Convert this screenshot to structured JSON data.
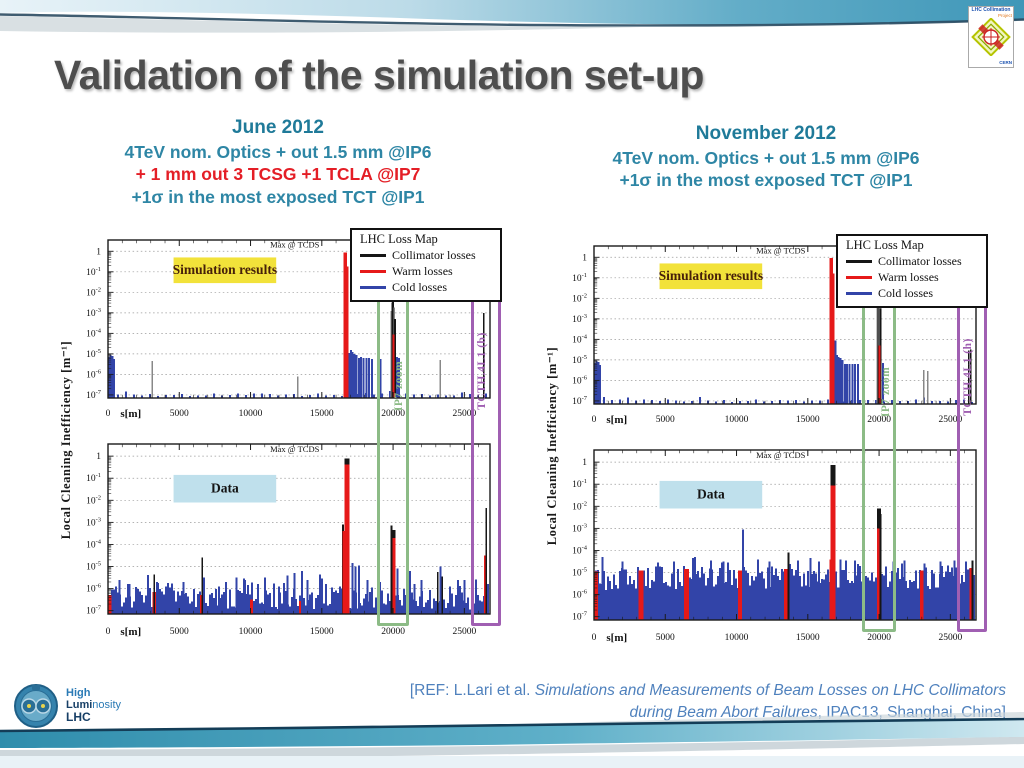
{
  "slide": {
    "title": "Validation of the simulation set-up"
  },
  "reference": {
    "prefix": "[REF: L.Lari et al. ",
    "italic_title": "Simulations and Measurements of Beam Losses on LHC Collimators during Beam Abort Failures",
    "suffix": ", IPAC13, Shanghai, China]"
  },
  "logos": {
    "collimation": {
      "line1": "LHC Collimation",
      "line2": "Project",
      "line3": "CERN"
    },
    "hllhc": {
      "line1": "High",
      "line2a": "Lumi",
      "line2b": "nosity",
      "line3": "LHC"
    }
  },
  "legend": {
    "title": "LHC Loss Map",
    "items": [
      {
        "label": "Collimator losses",
        "kind": "collimator"
      },
      {
        "label": "Warm losses",
        "kind": "warm"
      },
      {
        "label": "Cold losses",
        "kind": "cold"
      }
    ]
  },
  "plot_colors": {
    "collimator": "#161616",
    "warm": "#e61919",
    "cold": "#3244a8",
    "gray": "#888888"
  },
  "panels": [
    {
      "id": "june",
      "y_axis_label": "Local Cleaning Inefficiency [m⁻¹]",
      "header": {
        "lines": [
          {
            "text": "June 2012",
            "color": "#1f7a99",
            "weight": 700,
            "size": 19
          },
          {
            "text": "4TeV nom. Optics + out 1.5 mm @IP6",
            "color": "#2e86a5",
            "weight": 600,
            "size": 17.5
          },
          {
            "text": "+ 1 mm out 3 TCSG +1 TCLA @IP7",
            "color": "#e41e26",
            "weight": 600,
            "size": 17.5
          },
          {
            "text": "+1σ in the most exposed TCT @IP1",
            "color": "#2e86a5",
            "weight": 600,
            "size": 17.5
          }
        ]
      },
      "overlays": {
        "ip7": {
          "label": "IP7 zoom",
          "s_from": 18900,
          "s_to": 21100,
          "top_log": -2.2,
          "color": "#8cbb86"
        },
        "tct": {
          "label": "TCTH.4L1 (b)",
          "s_from": 25450,
          "s_to": 27600,
          "top_log": -2.05,
          "color": "#a05fb2"
        }
      },
      "charts": [
        "june-sim",
        "june-data"
      ]
    },
    {
      "id": "november",
      "y_axis_label": "Local Cleaning Inefficiency [m⁻¹]",
      "header": {
        "lines": [
          {
            "text": "November 2012",
            "color": "#1f7a99",
            "weight": 700,
            "size": 19
          },
          {
            "text": "4TeV nom. Optics + out 1.5 mm @IP6",
            "color": "#2e86a5",
            "weight": 600,
            "size": 17.5
          },
          {
            "text": "+1σ in the most exposed TCT @IP1",
            "color": "#2e86a5",
            "weight": 600,
            "size": 17.5
          }
        ]
      },
      "overlays": {
        "ip7": {
          "label": "IP7 zoom",
          "s_from": 18800,
          "s_to": 21200,
          "top_log": -1.05,
          "color": "#8cbb86"
        },
        "tct": {
          "label": "TCTH.4L1 (h)",
          "s_from": 25450,
          "s_to": 27600,
          "top_log": -2.1,
          "color": "#a05fb2"
        }
      },
      "charts": [
        "november-sim",
        "november-data"
      ]
    }
  ],
  "chart_data": [
    {
      "id": "june-sim",
      "panel": "june",
      "slot": "top",
      "type": "bar",
      "x_label": "s[m]",
      "x_ticks": [
        0,
        5000,
        10000,
        15000,
        20000,
        25000
      ],
      "x_range": [
        0,
        26800
      ],
      "y_tick_exponents": [
        0,
        -1,
        -2,
        -3,
        -4,
        -5,
        -6,
        -7
      ],
      "y_log_range": [
        -7,
        1
      ],
      "grid": "dotted-horizontal",
      "annotations": {
        "max": "Max @ TCDS",
        "box": {
          "label": "Simulation results",
          "bg": "#f2e23a",
          "text": "#46200a"
        }
      },
      "noise": {
        "seed": 5,
        "step": 8,
        "floor": [
          -7.05,
          -6.92
        ],
        "p_mid": 0.15,
        "mid": [
          -6.92,
          -6.78
        ],
        "p_high": 0.0,
        "high": [
          -6.8,
          -6.7
        ],
        "kind": "cold"
      },
      "peaks": [
        [
          120,
          -5.15,
          "cold",
          2
        ],
        [
          190,
          -5.05,
          "cold",
          2
        ],
        [
          260,
          -5.2,
          "cold",
          2
        ],
        [
          330,
          -5.1,
          "cold",
          2
        ],
        [
          410,
          -5.25,
          "cold",
          2
        ],
        [
          3100,
          -5.35,
          "gray",
          1.5
        ],
        [
          13300,
          -6.1,
          "gray",
          1.5
        ],
        [
          16650,
          -0.05,
          "warm",
          3.5
        ],
        [
          16820,
          -0.75,
          "warm",
          1.8
        ],
        [
          16960,
          -4.95,
          "cold",
          2
        ],
        [
          17060,
          -4.8,
          "cold",
          2
        ],
        [
          17170,
          -4.9,
          "cold",
          2
        ],
        [
          17300,
          -5.0,
          "cold",
          2
        ],
        [
          17450,
          -5.05,
          "cold",
          2
        ],
        [
          17600,
          -5.2,
          "cold",
          2
        ],
        [
          17760,
          -5.15,
          "cold",
          2
        ],
        [
          17920,
          -5.2,
          "cold",
          2
        ],
        [
          18120,
          -5.2,
          "cold",
          2
        ],
        [
          18320,
          -5.2,
          "cold",
          2
        ],
        [
          18520,
          -5.25,
          "cold",
          2
        ],
        [
          18960,
          -5.2,
          "cold",
          2
        ],
        [
          19120,
          -5.25,
          "cold",
          2
        ],
        [
          19880,
          -2.9,
          "gray",
          1.5
        ],
        [
          19945,
          -2.5,
          "collimator",
          2
        ],
        [
          20005,
          -2.42,
          "collimator",
          2
        ],
        [
          20065,
          -2.75,
          "gray",
          1.5
        ],
        [
          20125,
          -3.3,
          "collimator",
          2
        ],
        [
          20030,
          -4.05,
          "warm",
          1.8
        ],
        [
          20290,
          -5.15,
          "cold",
          2
        ],
        [
          20430,
          -5.2,
          "cold",
          2
        ],
        [
          23300,
          -5.3,
          "gray",
          1.5
        ],
        [
          26350,
          -3.0,
          "collimator",
          1.5
        ]
      ]
    },
    {
      "id": "june-data",
      "panel": "june",
      "slot": "bottom",
      "type": "bar",
      "x_label": "s[m]",
      "x_ticks": [
        0,
        5000,
        10000,
        15000,
        20000,
        25000
      ],
      "x_range": [
        0,
        26800
      ],
      "y_tick_exponents": [
        0,
        -1,
        -2,
        -3,
        -4,
        -5,
        -6,
        -7
      ],
      "y_log_range": [
        -7,
        1
      ],
      "grid": "dotted-horizontal",
      "annotations": {
        "max": "Max @ TCDS",
        "box": {
          "label": "Data",
          "bg": "#bfe0ec",
          "text": "#141414"
        }
      },
      "noise": {
        "seed": 13,
        "step": 2,
        "floor": [
          -6.95,
          -6.05
        ],
        "p_mid": 0.14,
        "mid": [
          -6.05,
          -5.65
        ],
        "p_high": 0.03,
        "high": [
          -5.65,
          -5.15
        ],
        "kind": "cold"
      },
      "peaks": [
        [
          150,
          -6.3,
          "warm",
          3
        ],
        [
          800,
          -5.6,
          "cold",
          2
        ],
        [
          1500,
          -5.8,
          "cold",
          2
        ],
        [
          3250,
          -6.15,
          "warm",
          4
        ],
        [
          3250,
          -5.35,
          "collimator",
          1.5
        ],
        [
          3430,
          -5.7,
          "cold",
          2
        ],
        [
          4200,
          -5.9,
          "cold",
          2
        ],
        [
          5300,
          -5.7,
          "cold",
          2
        ],
        [
          6550,
          -6.3,
          "warm",
          3
        ],
        [
          6620,
          -4.6,
          "collimator",
          1.5
        ],
        [
          6720,
          -5.5,
          "cold",
          2
        ],
        [
          7800,
          -5.9,
          "cold",
          2
        ],
        [
          9000,
          -5.5,
          "cold",
          2
        ],
        [
          9600,
          -5.6,
          "cold",
          2
        ],
        [
          10050,
          -6.5,
          "warm",
          3
        ],
        [
          11000,
          -5.5,
          "cold",
          2
        ],
        [
          12000,
          -5.9,
          "cold",
          2
        ],
        [
          12600,
          -5.4,
          "cold",
          2
        ],
        [
          13100,
          -5.3,
          "cold",
          2
        ],
        [
          13500,
          -6.55,
          "warm",
          3
        ],
        [
          13620,
          -5.2,
          "cold",
          2
        ],
        [
          14000,
          -5.6,
          "cold",
          2
        ],
        [
          15000,
          -5.8,
          "cold",
          2
        ],
        [
          16480,
          -3.1,
          "collimator",
          2
        ],
        [
          16525,
          -3.4,
          "warm",
          2
        ],
        [
          16750,
          -0.1,
          "collimator",
          5
        ],
        [
          16750,
          -0.38,
          "warm",
          5
        ],
        [
          17150,
          -4.85,
          "cold",
          2
        ],
        [
          17350,
          -5.0,
          "cold",
          2
        ],
        [
          17600,
          -4.95,
          "cold",
          2
        ],
        [
          18200,
          -5.6,
          "cold",
          2
        ],
        [
          19900,
          -3.15,
          "collimator",
          2
        ],
        [
          20055,
          -3.35,
          "collimator",
          3
        ],
        [
          20055,
          -3.7,
          "warm",
          3
        ],
        [
          20310,
          -5.1,
          "cold",
          2
        ],
        [
          21500,
          -5.8,
          "cold",
          2
        ],
        [
          22000,
          -5.6,
          "cold",
          2
        ],
        [
          23150,
          -5.25,
          "collimator",
          1.5
        ],
        [
          23330,
          -5.0,
          "cold",
          2
        ],
        [
          23460,
          -5.45,
          "collimator",
          1.5
        ],
        [
          24000,
          -5.9,
          "cold",
          2
        ],
        [
          25000,
          -5.6,
          "cold",
          2
        ],
        [
          26480,
          -4.5,
          "warm",
          3
        ],
        [
          26530,
          -2.35,
          "collimator",
          1.5
        ]
      ]
    },
    {
      "id": "november-sim",
      "panel": "november",
      "slot": "top",
      "type": "bar",
      "x_label": "s[m]",
      "x_ticks": [
        0,
        5000,
        10000,
        15000,
        20000,
        25000
      ],
      "x_range": [
        0,
        26800
      ],
      "y_tick_exponents": [
        0,
        -1,
        -2,
        -3,
        -4,
        -5,
        -6,
        -7
      ],
      "y_log_range": [
        -7,
        1
      ],
      "grid": "dotted-horizontal",
      "annotations": {
        "max": "Max @ TCDS",
        "box": {
          "label": "Simulation results",
          "bg": "#f2e23a",
          "text": "#46200a"
        }
      },
      "noise": {
        "seed": 9,
        "step": 8,
        "floor": [
          -7.05,
          -6.92
        ],
        "p_mid": 0.15,
        "mid": [
          -6.92,
          -6.78
        ],
        "p_high": 0.0,
        "high": [
          -6.8,
          -6.7
        ],
        "kind": "cold"
      },
      "peaks": [
        [
          120,
          -5.15,
          "cold",
          2
        ],
        [
          190,
          -5.05,
          "cold",
          2
        ],
        [
          260,
          -5.2,
          "cold",
          2
        ],
        [
          330,
          -5.1,
          "cold",
          2
        ],
        [
          410,
          -5.25,
          "cold",
          2
        ],
        [
          16650,
          -0.03,
          "warm",
          3.5
        ],
        [
          16820,
          -0.8,
          "warm",
          1.8
        ],
        [
          16960,
          -4.05,
          "cold",
          2
        ],
        [
          17060,
          -4.75,
          "cold",
          2
        ],
        [
          17170,
          -4.85,
          "cold",
          2
        ],
        [
          17300,
          -4.9,
          "cold",
          2
        ],
        [
          17450,
          -5.0,
          "cold",
          2
        ],
        [
          17600,
          -5.2,
          "cold",
          2
        ],
        [
          17760,
          -5.2,
          "cold",
          2
        ],
        [
          17920,
          -5.2,
          "cold",
          2
        ],
        [
          18120,
          -5.2,
          "cold",
          2
        ],
        [
          18320,
          -5.2,
          "cold",
          2
        ],
        [
          18520,
          -5.2,
          "cold",
          2
        ],
        [
          18920,
          -5.2,
          "cold",
          2
        ],
        [
          19930,
          -2.1,
          "gray",
          3
        ],
        [
          19990,
          -1.6,
          "collimator",
          3
        ],
        [
          20050,
          -1.78,
          "gray",
          3
        ],
        [
          20110,
          -2.5,
          "collimator",
          2
        ],
        [
          20020,
          -4.3,
          "warm",
          1.8
        ],
        [
          20260,
          -5.15,
          "cold",
          2
        ],
        [
          23150,
          -5.5,
          "gray",
          1.5
        ],
        [
          23400,
          -5.55,
          "gray",
          1.5
        ],
        [
          26300,
          -4.55,
          "collimator",
          1.3
        ],
        [
          26440,
          -4.5,
          "collimator",
          1.3
        ]
      ]
    },
    {
      "id": "november-data",
      "panel": "november",
      "slot": "bottom",
      "type": "bar",
      "x_label": "s[m]",
      "x_ticks": [
        0,
        5000,
        10000,
        15000,
        20000,
        25000
      ],
      "x_range": [
        0,
        26800
      ],
      "y_tick_exponents": [
        0,
        -1,
        -2,
        -3,
        -4,
        -5,
        -6,
        -7
      ],
      "y_log_range": [
        -7,
        1
      ],
      "grid": "dotted-horizontal",
      "annotations": {
        "max": "Max @ TCDS",
        "box": {
          "label": "Data",
          "bg": "#bfe0ec",
          "text": "#141414"
        }
      },
      "noise": {
        "seed": 29,
        "step": 2,
        "floor": [
          -5.8,
          -4.95
        ],
        "p_mid": 0.3,
        "mid": [
          -4.95,
          -4.7
        ],
        "p_high": 0.05,
        "high": [
          -4.7,
          -4.45
        ],
        "kind": "cold"
      },
      "peaks": [
        [
          150,
          -4.95,
          "warm",
          4
        ],
        [
          600,
          -4.3,
          "cold",
          2
        ],
        [
          2000,
          -4.5,
          "cold",
          2
        ],
        [
          3300,
          -4.9,
          "warm",
          5
        ],
        [
          4500,
          -4.55,
          "cold",
          2
        ],
        [
          5600,
          -4.5,
          "cold",
          2
        ],
        [
          6500,
          -4.85,
          "warm",
          5
        ],
        [
          6950,
          -4.35,
          "cold",
          2
        ],
        [
          7100,
          -4.3,
          "cold",
          2
        ],
        [
          8200,
          -4.45,
          "cold",
          2
        ],
        [
          9100,
          -4.5,
          "cold",
          2
        ],
        [
          10300,
          -4.9,
          "warm",
          6
        ],
        [
          10450,
          -3.05,
          "cold",
          2
        ],
        [
          11500,
          -4.4,
          "cold",
          2
        ],
        [
          12300,
          -4.5,
          "cold",
          2
        ],
        [
          13500,
          -4.85,
          "warm",
          5
        ],
        [
          13650,
          -4.1,
          "collimator",
          2
        ],
        [
          14300,
          -4.45,
          "cold",
          2
        ],
        [
          15200,
          -4.35,
          "cold",
          2
        ],
        [
          15800,
          -4.5,
          "cold",
          2
        ],
        [
          16600,
          -4.4,
          "warm",
          2
        ],
        [
          16750,
          -0.12,
          "collimator",
          5
        ],
        [
          16750,
          -1.05,
          "warm",
          5
        ],
        [
          17300,
          -4.4,
          "cold",
          2
        ],
        [
          18300,
          -4.45,
          "cold",
          2
        ],
        [
          19980,
          -2.1,
          "collimator",
          4
        ],
        [
          19980,
          -3.0,
          "warm",
          4
        ],
        [
          20100,
          -2.35,
          "collimator",
          2
        ],
        [
          21000,
          -4.5,
          "cold",
          2
        ],
        [
          21800,
          -4.45,
          "cold",
          2
        ],
        [
          23050,
          -4.9,
          "warm",
          5
        ],
        [
          23200,
          -4.6,
          "cold",
          2
        ],
        [
          24300,
          -4.5,
          "cold",
          2
        ],
        [
          25300,
          -4.45,
          "cold",
          2
        ],
        [
          26100,
          -4.5,
          "cold",
          2
        ],
        [
          26500,
          -4.8,
          "warm",
          4
        ],
        [
          26560,
          -4.45,
          "collimator",
          2
        ]
      ]
    }
  ]
}
